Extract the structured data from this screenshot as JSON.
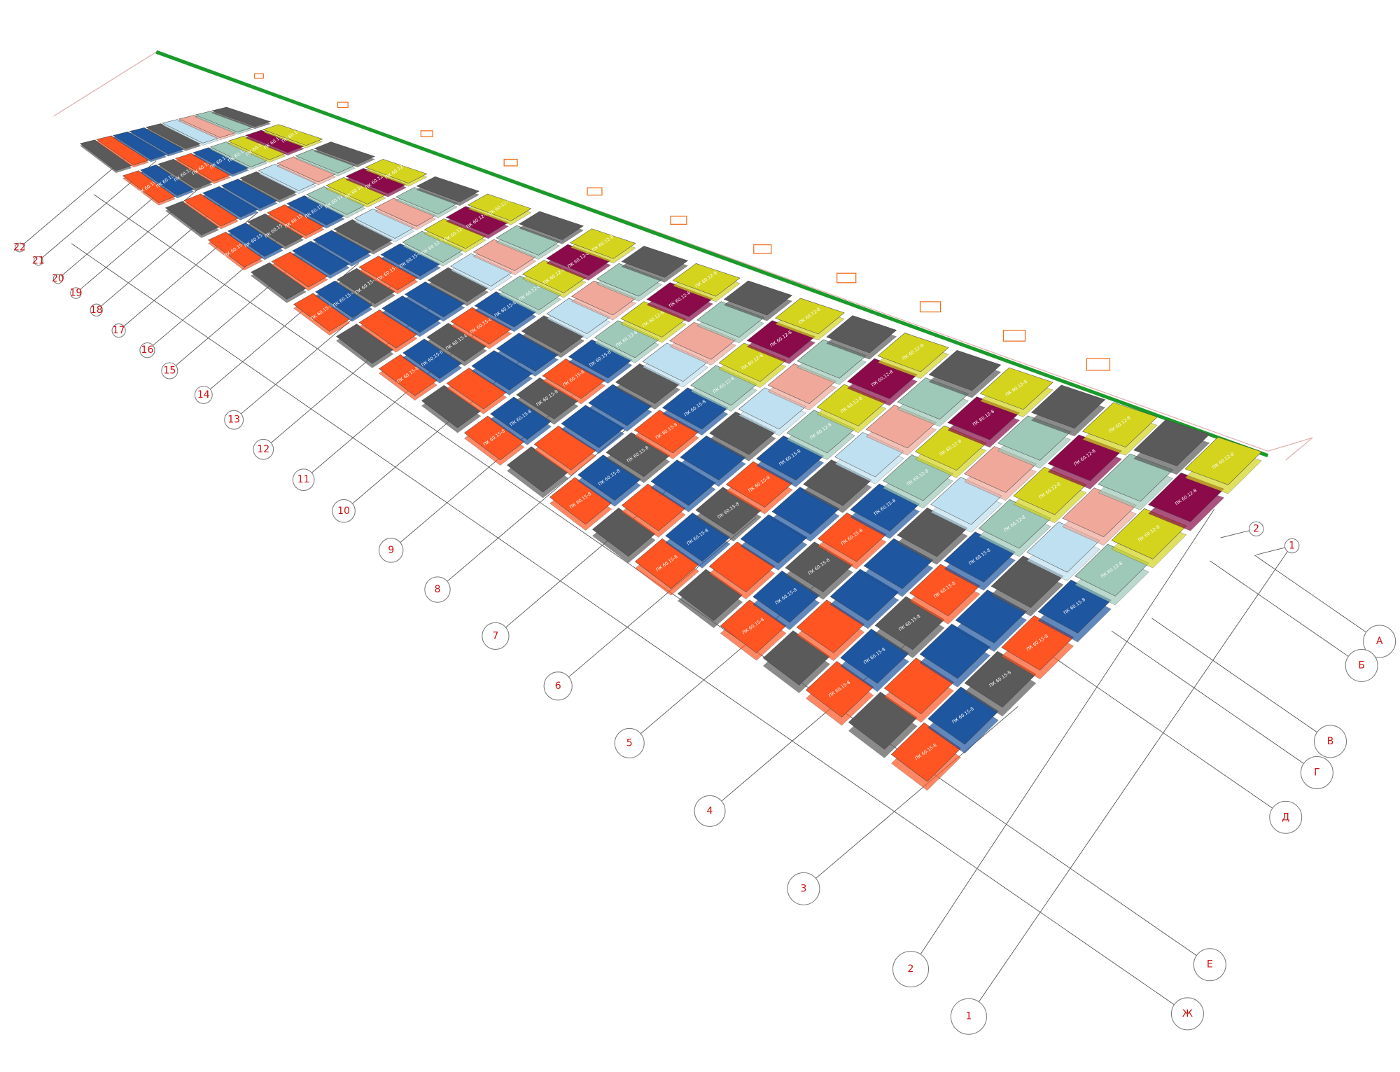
{
  "axes": {
    "numbered": [
      "3",
      "4",
      "5",
      "6",
      "7",
      "8",
      "9",
      "10",
      "11",
      "12",
      "13",
      "14",
      "15",
      "16",
      "17",
      "18",
      "19",
      "20",
      "21",
      "22"
    ],
    "lettered": [
      "А",
      "Б",
      "В",
      "Г",
      "Д",
      "Е",
      "Ж"
    ],
    "side": [
      "1",
      "2"
    ],
    "top": [
      "1",
      "2"
    ]
  },
  "panel_labels": [
    "ПК 60.15-8",
    "ПК 60.12-8"
  ]
}
